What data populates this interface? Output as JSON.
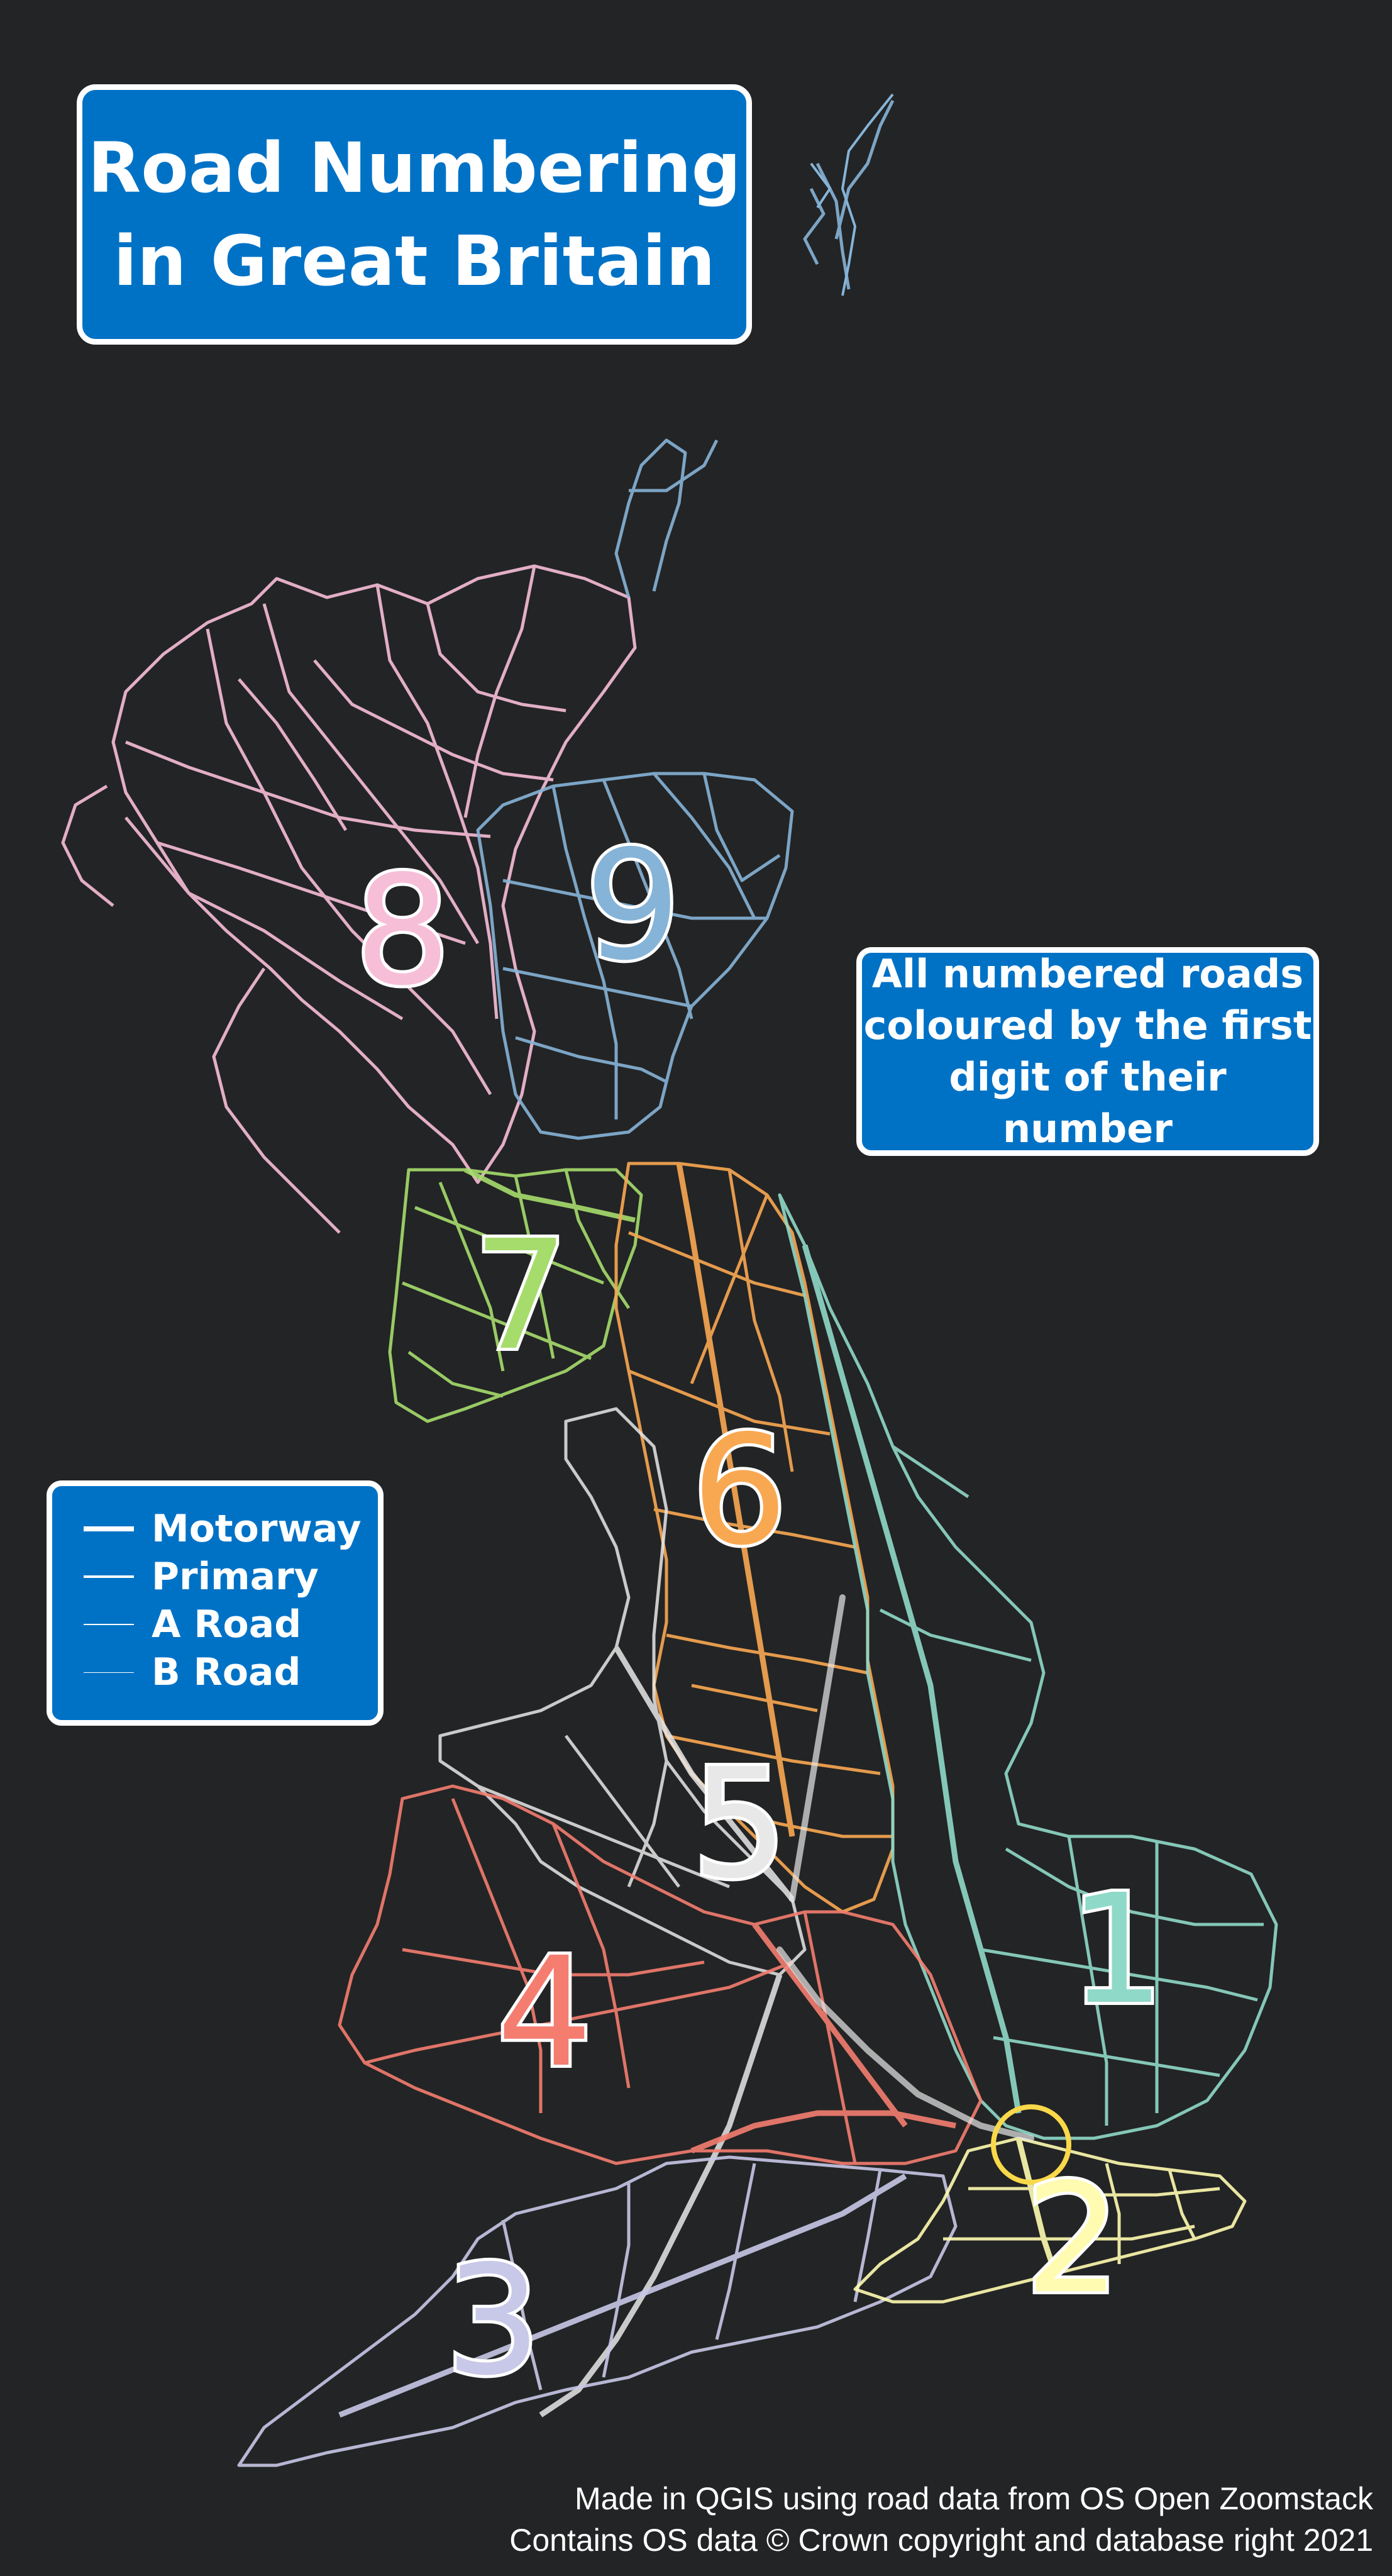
{
  "title": {
    "line1": "Road Numbering",
    "line2": "in Great Britain"
  },
  "info": {
    "line1": "All numbered roads",
    "line2": "coloured by the first",
    "line3": "digit of their number"
  },
  "legend": [
    {
      "label": "Motorway",
      "weight": "thick"
    },
    {
      "label": "Primary",
      "weight": "medium"
    },
    {
      "label": "A Road",
      "weight": "thin"
    },
    {
      "label": "B Road",
      "weight": "hairline"
    }
  ],
  "zones": [
    {
      "digit": "1",
      "color": "#8fd9c8"
    },
    {
      "digit": "2",
      "color": "#fffbb0"
    },
    {
      "digit": "3",
      "color": "#c8c8e8"
    },
    {
      "digit": "4",
      "color": "#f47d70"
    },
    {
      "digit": "5",
      "color": "#e8e8e8"
    },
    {
      "digit": "6",
      "color": "#f9a852"
    },
    {
      "digit": "7",
      "color": "#a6dc6c"
    },
    {
      "digit": "8",
      "color": "#f7bed8"
    },
    {
      "digit": "9",
      "color": "#86b4d8"
    }
  ],
  "credits": {
    "line1": "Made in QGIS using road data from OS Open Zoomstack",
    "line2": "Contains OS data © Crown copyright and database right 2021"
  },
  "colors": {
    "background": "#232425",
    "sign_blue": "#0072c6",
    "sign_border": "#ffffff"
  }
}
